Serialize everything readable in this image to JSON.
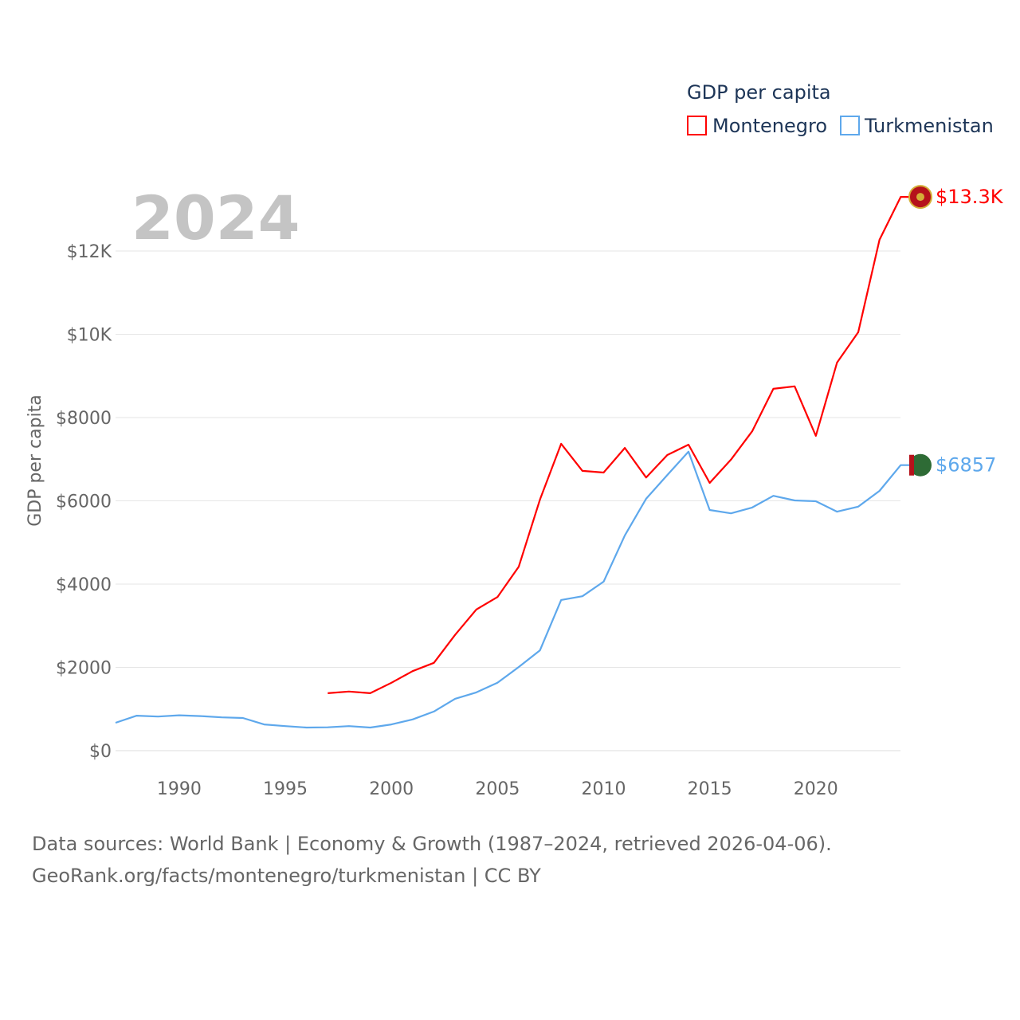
{
  "chart_data": {
    "type": "line",
    "title": "",
    "legend_title": "GDP per capita",
    "legend_position": "top-right",
    "year_label": "2024",
    "ylabel": "GDP per capita",
    "xlabel": "",
    "xlim": [
      1987,
      2024
    ],
    "ylim": [
      0,
      13300
    ],
    "x_ticks": [
      1990,
      1995,
      2000,
      2005,
      2010,
      2015,
      2020
    ],
    "y_ticks": [
      {
        "value": 0,
        "label": "$0"
      },
      {
        "value": 2000,
        "label": "$2000"
      },
      {
        "value": 4000,
        "label": "$4000"
      },
      {
        "value": 6000,
        "label": "$6000"
      },
      {
        "value": 8000,
        "label": "$8000"
      },
      {
        "value": 10000,
        "label": "$10K"
      },
      {
        "value": 12000,
        "label": "$12K"
      }
    ],
    "grid": true,
    "series": [
      {
        "name": "Montenegro",
        "color": "#ff0000",
        "end_label": "$13.3K",
        "x": [
          1997,
          1998,
          1999,
          2000,
          2001,
          2002,
          2003,
          2004,
          2005,
          2006,
          2007,
          2008,
          2009,
          2010,
          2011,
          2012,
          2013,
          2014,
          2015,
          2016,
          2017,
          2018,
          2019,
          2020,
          2021,
          2022,
          2023,
          2024
        ],
        "values": [
          1380,
          1420,
          1380,
          1630,
          1910,
          2110,
          2780,
          3390,
          3690,
          4420,
          6030,
          7370,
          6720,
          6680,
          7270,
          6560,
          7100,
          7350,
          6430,
          6990,
          7670,
          8690,
          8750,
          7560,
          9320,
          10050,
          12270,
          13300
        ]
      },
      {
        "name": "Turkmenistan",
        "color": "#5ea8ec",
        "end_label": "$6857",
        "x": [
          1987,
          1988,
          1989,
          1990,
          1991,
          1992,
          1993,
          1994,
          1995,
          1996,
          1997,
          1998,
          1999,
          2000,
          2001,
          2002,
          2003,
          2004,
          2005,
          2006,
          2007,
          2008,
          2009,
          2010,
          2011,
          2012,
          2013,
          2014,
          2015,
          2016,
          2017,
          2018,
          2019,
          2020,
          2021,
          2022,
          2023,
          2024
        ],
        "values": [
          670,
          840,
          820,
          850,
          830,
          800,
          785,
          630,
          590,
          555,
          560,
          590,
          555,
          630,
          750,
          940,
          1245,
          1400,
          1630,
          2010,
          2410,
          3620,
          3710,
          4060,
          5170,
          6050,
          6620,
          7180,
          5780,
          5700,
          5840,
          6120,
          6010,
          5990,
          5740,
          5860,
          6240,
          6857
        ]
      }
    ]
  },
  "footer": {
    "line1": "Data sources: World Bank | Economy & Growth (1987–2024, retrieved 2026-04-06).",
    "line2": "GeoRank.org/facts/montenegro/turkmenistan | CC BY"
  }
}
